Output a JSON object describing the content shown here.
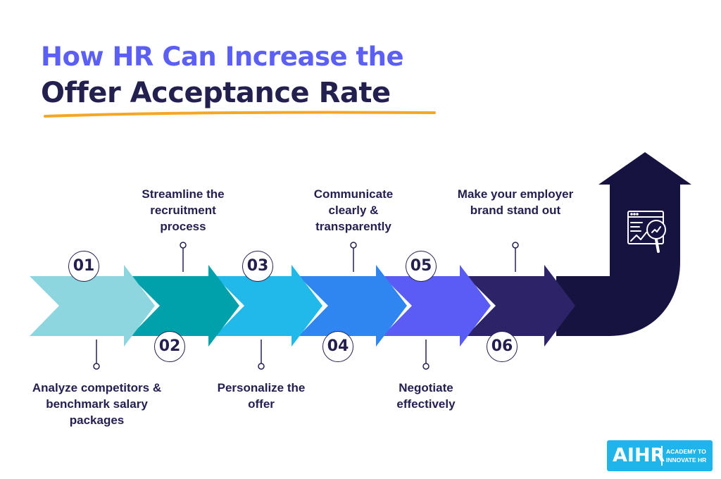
{
  "title": {
    "line1": "How HR Can Increase the",
    "line2": "Offer Acceptance Rate"
  },
  "colors": {
    "title_accent": "#5b5ff6",
    "title_dark": "#23204f",
    "underline": "#f5a623",
    "step1": "#8dd6df",
    "step2": "#00a1ab",
    "step3": "#21b8ea",
    "step4": "#2f86f0",
    "step5": "#5a5cf5",
    "step6": "#2d2368",
    "final_arrow": "#171340"
  },
  "steps": [
    {
      "number": "01",
      "label": "Analyze competitors & benchmark salary packages"
    },
    {
      "number": "02",
      "label": "Streamline the recruitment process"
    },
    {
      "number": "03",
      "label": "Personalize the offer"
    },
    {
      "number": "04",
      "label": "Communicate clearly & transparently"
    },
    {
      "number": "05",
      "label": "Negotiate effectively"
    },
    {
      "number": "06",
      "label": "Make your employer brand stand out"
    }
  ],
  "final_icon": "analytics-magnifier-icon",
  "logo": {
    "name": "AIHR",
    "tagline": "ACADEMY TO INNOVATE HR"
  }
}
